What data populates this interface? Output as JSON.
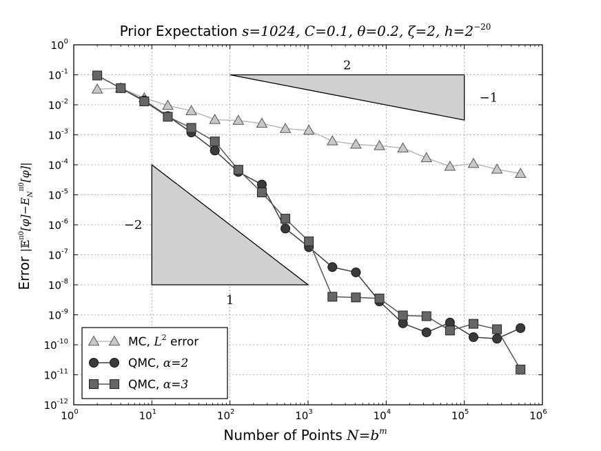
{
  "chart_data": {
    "type": "line",
    "title": "Prior Expectation s=1024, C=0.1, θ=0.2, ζ=2, h=2⁻²⁰",
    "title_parts": {
      "prefix": "Prior Expectation ",
      "math": "s=1024, C=0.1, θ=0.2, ζ=2, h=2",
      "exponent": "−20"
    },
    "xlabel": "Number of Points N=b^m",
    "xlabel_parts": {
      "prefix": "Number of Points ",
      "math": "N=b",
      "exponent": "m"
    },
    "ylabel": "Error |E^π0[φ]−E_N^π0[φ]|",
    "ylabel_parts": {
      "prefix": "Error ",
      "math": "|𝔼",
      "sup1": "π0",
      "mid": "[φ]−E",
      "sub": "N",
      "sup2": "π0",
      "end": "[φ]|"
    },
    "x_scale": "log",
    "y_scale": "log",
    "xlim": [
      1,
      1000000
    ],
    "ylim": [
      1e-12,
      1
    ],
    "grid": true,
    "legend_position": "lower-left",
    "x_ticks": [
      {
        "value": 1,
        "base": "10",
        "exp": "0"
      },
      {
        "value": 10,
        "base": "10",
        "exp": "1"
      },
      {
        "value": 100,
        "base": "10",
        "exp": "2"
      },
      {
        "value": 1000,
        "base": "10",
        "exp": "3"
      },
      {
        "value": 10000,
        "base": "10",
        "exp": "4"
      },
      {
        "value": 100000,
        "base": "10",
        "exp": "5"
      },
      {
        "value": 1000000,
        "base": "10",
        "exp": "6"
      }
    ],
    "y_ticks": [
      {
        "value": 1,
        "base": "10",
        "exp": "0"
      },
      {
        "value": 0.1,
        "base": "10",
        "exp": "-1"
      },
      {
        "value": 0.01,
        "base": "10",
        "exp": "-2"
      },
      {
        "value": 0.001,
        "base": "10",
        "exp": "-3"
      },
      {
        "value": 0.0001,
        "base": "10",
        "exp": "-4"
      },
      {
        "value": 1e-05,
        "base": "10",
        "exp": "-5"
      },
      {
        "value": 1e-06,
        "base": "10",
        "exp": "-6"
      },
      {
        "value": 1e-07,
        "base": "10",
        "exp": "-7"
      },
      {
        "value": 1e-08,
        "base": "10",
        "exp": "-8"
      },
      {
        "value": 1e-09,
        "base": "10",
        "exp": "-9"
      },
      {
        "value": 1e-10,
        "base": "10",
        "exp": "-10"
      },
      {
        "value": 1e-11,
        "base": "10",
        "exp": "-11"
      },
      {
        "value": 1e-12,
        "base": "10",
        "exp": "-12"
      }
    ],
    "x": [
      2,
      4,
      8,
      16,
      32,
      64,
      128,
      256,
      512,
      1024,
      2048,
      4096,
      8192,
      16384,
      32768,
      65536,
      131072,
      262144,
      524288
    ],
    "series": [
      {
        "name": "MC, L² error",
        "legend_label": {
          "prefix": "MC, ",
          "math": "L",
          "exponent": "2",
          "suffix": " error"
        },
        "marker": "triangle",
        "line_color": "#b8b8b8",
        "marker_fill": "#c8c8c8",
        "values": [
          0.033,
          0.036,
          0.017,
          0.0095,
          0.0063,
          0.0032,
          0.003,
          0.0024,
          0.0016,
          0.0014,
          0.00062,
          0.00048,
          0.00043,
          0.00036,
          0.00017,
          8.8e-05,
          0.00011,
          7.1e-05,
          5.1e-05
        ]
      },
      {
        "name": "QMC, α=2",
        "legend_label": {
          "prefix": "QMC, ",
          "math": "α=2",
          "exponent": "",
          "suffix": ""
        },
        "marker": "circle",
        "line_color": "#3a3a3a",
        "marker_fill": "#3a3a3a",
        "values": [
          0.095,
          0.036,
          0.014,
          0.0042,
          0.0012,
          0.0003,
          5.8e-05,
          2.2e-05,
          7.5e-07,
          1.8e-07,
          3.9e-08,
          2.6e-08,
          2.8e-09,
          5.2e-10,
          2.6e-10,
          5.5e-10,
          1.8e-10,
          1.6e-10,
          3.6e-10
        ]
      },
      {
        "name": "QMC, α=3",
        "legend_label": {
          "prefix": "QMC, ",
          "math": "α=3",
          "exponent": "",
          "suffix": ""
        },
        "marker": "square",
        "line_color": "#555555",
        "marker_fill": "#666666",
        "values": [
          0.095,
          0.036,
          0.013,
          0.004,
          0.0017,
          0.0006,
          6.8e-05,
          1.2e-05,
          1.6e-06,
          2.8e-07,
          4e-09,
          3.8e-09,
          3.5e-09,
          9.5e-10,
          9e-10,
          3e-10,
          5e-10,
          3.3e-10,
          1.5e-11
        ]
      }
    ],
    "triangles": [
      {
        "name": "slope-neg1",
        "points": [
          [
            100,
            0.1
          ],
          [
            100000,
            0.1
          ],
          [
            100000,
            0.0031
          ]
        ],
        "run_label": "2",
        "rise_label": "−1"
      },
      {
        "name": "slope-neg2",
        "points": [
          [
            10,
            0.0001
          ],
          [
            10,
            1e-08
          ],
          [
            1000,
            1e-08
          ]
        ],
        "run_label": "1",
        "rise_label": "−2"
      }
    ],
    "colors": {
      "triangle_fill": "#d0d0d0",
      "grid": "#9a9a9a",
      "axis": "#000000"
    }
  }
}
